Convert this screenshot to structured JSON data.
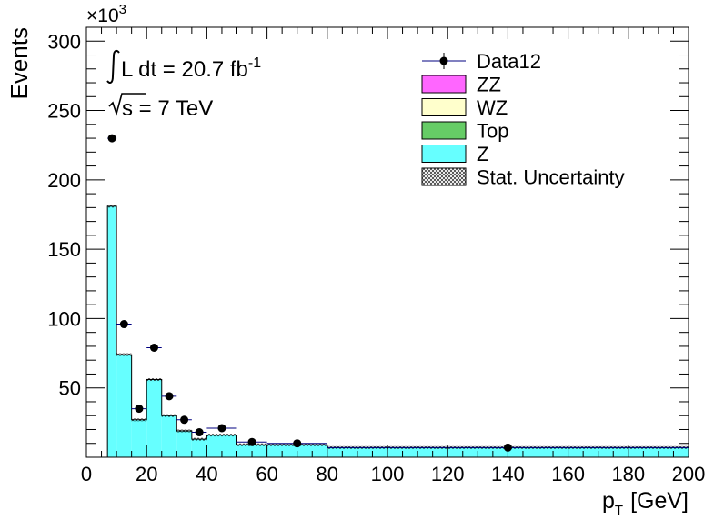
{
  "chart_data": {
    "type": "bar",
    "ylabel": "Events",
    "xlabel_main": "p",
    "xlabel_sub": "T",
    "xlabel_unit": "[GeV]",
    "y_multiplier": "×10",
    "y_multiplier_exp": "3",
    "xlim": [
      0,
      200
    ],
    "ylim": [
      0,
      310
    ],
    "x_ticks": [
      0,
      20,
      40,
      60,
      80,
      100,
      120,
      140,
      160,
      180,
      200
    ],
    "y_ticks": [
      50,
      100,
      150,
      200,
      250,
      300
    ],
    "annotation_lumi": "L dt = 20.7 fb",
    "annotation_lumi_exp": "-1",
    "annotation_energy": "s = 7 TeV",
    "legend": [
      {
        "label": "Data12",
        "kind": "marker",
        "color": "#000000"
      },
      {
        "label": "ZZ",
        "kind": "fill",
        "color": "#ff66ff"
      },
      {
        "label": "WZ",
        "kind": "fill",
        "color": "#ffffcc"
      },
      {
        "label": "Top",
        "kind": "fill",
        "color": "#66cc66"
      },
      {
        "label": "Z",
        "kind": "fill",
        "color": "#66ffff"
      },
      {
        "label": "Stat. Uncertainty",
        "kind": "hatch",
        "color": "#000000"
      }
    ],
    "mc_bins": [
      {
        "lo": 7,
        "hi": 10,
        "value": 181
      },
      {
        "lo": 10,
        "hi": 15,
        "value": 74
      },
      {
        "lo": 15,
        "hi": 20,
        "value": 27
      },
      {
        "lo": 20,
        "hi": 25,
        "value": 56
      },
      {
        "lo": 25,
        "hi": 30,
        "value": 30
      },
      {
        "lo": 30,
        "hi": 35,
        "value": 19
      },
      {
        "lo": 35,
        "hi": 40,
        "value": 13
      },
      {
        "lo": 40,
        "hi": 50,
        "value": 16
      },
      {
        "lo": 50,
        "hi": 60,
        "value": 9
      },
      {
        "lo": 60,
        "hi": 80,
        "value": 9
      },
      {
        "lo": 80,
        "hi": 200,
        "value": 7
      }
    ],
    "data_points": [
      {
        "x": 8.5,
        "xerr": 1.5,
        "y": 230
      },
      {
        "x": 12.5,
        "xerr": 2.5,
        "y": 96
      },
      {
        "x": 17.5,
        "xerr": 2.5,
        "y": 35
      },
      {
        "x": 22.5,
        "xerr": 2.5,
        "y": 79
      },
      {
        "x": 27.5,
        "xerr": 2.5,
        "y": 44
      },
      {
        "x": 32.5,
        "xerr": 2.5,
        "y": 27
      },
      {
        "x": 37.5,
        "xerr": 2.5,
        "y": 18
      },
      {
        "x": 45,
        "xerr": 5,
        "y": 21
      },
      {
        "x": 55,
        "xerr": 5,
        "y": 11
      },
      {
        "x": 70,
        "xerr": 10,
        "y": 10
      },
      {
        "x": 140,
        "xerr": 60,
        "y": 7
      }
    ],
    "colors": {
      "Z": "#66ffff",
      "Top": "#66cc66",
      "WZ": "#ffffcc",
      "ZZ": "#ff66ff",
      "data": "#000000",
      "data_err": "#000080"
    }
  }
}
